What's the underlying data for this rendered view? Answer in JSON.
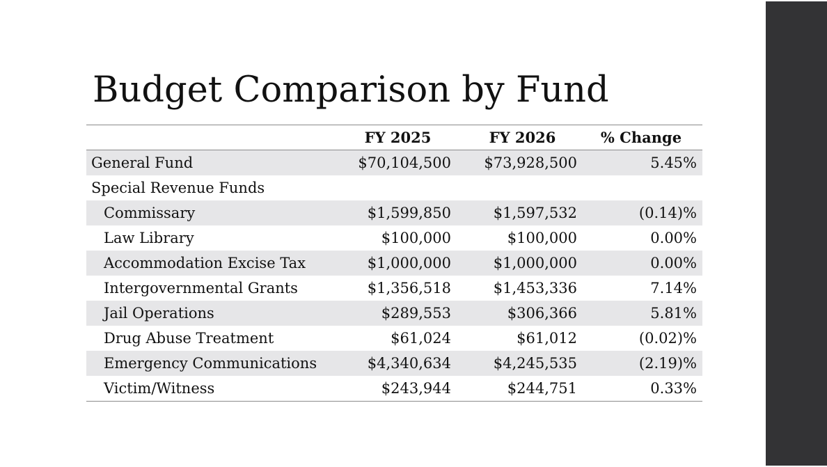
{
  "slide": {
    "title": "Budget Comparison by Fund"
  },
  "table": {
    "headers": {
      "name": "",
      "fy2025": "FY 2025",
      "fy2026": "FY 2026",
      "change": "% Change"
    },
    "rows": [
      {
        "name": "General Fund",
        "fy2025": "$70,104,500",
        "fy2026": "$73,928,500",
        "change": "5.45%",
        "indent": false,
        "shaded": true
      },
      {
        "name": "Special Revenue Funds",
        "fy2025": "",
        "fy2026": "",
        "change": "",
        "indent": false,
        "shaded": false
      },
      {
        "name": "Commissary",
        "fy2025": "$1,599,850",
        "fy2026": "$1,597,532",
        "change": "(0.14)%",
        "indent": true,
        "shaded": true
      },
      {
        "name": "Law Library",
        "fy2025": "$100,000",
        "fy2026": "$100,000",
        "change": "0.00%",
        "indent": true,
        "shaded": false
      },
      {
        "name": "Accommodation Excise Tax",
        "fy2025": "$1,000,000",
        "fy2026": "$1,000,000",
        "change": "0.00%",
        "indent": true,
        "shaded": true
      },
      {
        "name": "Intergovernmental Grants",
        "fy2025": "$1,356,518",
        "fy2026": "$1,453,336",
        "change": "7.14%",
        "indent": true,
        "shaded": false
      },
      {
        "name": "Jail Operations",
        "fy2025": "$289,553",
        "fy2026": "$306,366",
        "change": "5.81%",
        "indent": true,
        "shaded": true
      },
      {
        "name": "Drug Abuse Treatment",
        "fy2025": "$61,024",
        "fy2026": "$61,012",
        "change": "(0.02)%",
        "indent": true,
        "shaded": false
      },
      {
        "name": "Emergency Communications",
        "fy2025": "$4,340,634",
        "fy2026": "$4,245,535",
        "change": "(2.19)%",
        "indent": true,
        "shaded": true
      },
      {
        "name": "Victim/Witness",
        "fy2025": "$243,944",
        "fy2026": "$244,751",
        "change": "0.33%",
        "indent": true,
        "shaded": false
      }
    ]
  },
  "colors": {
    "side_bar": "#333335",
    "row_shade": "#e6e6e8",
    "rule": "#8a8a8a"
  }
}
